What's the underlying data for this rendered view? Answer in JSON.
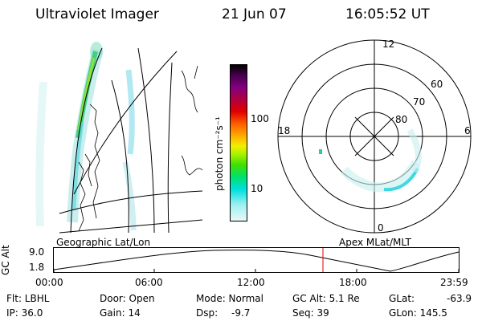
{
  "header": {
    "title": "Ultraviolet Imager",
    "date": "21 Jun 07",
    "time": "16:05:52 UT"
  },
  "colorbar": {
    "label": "photon cm⁻²s⁻¹",
    "ticks": [
      "100",
      "10"
    ],
    "colors": [
      "#000000",
      "#4b0050",
      "#800080",
      "#b00040",
      "#e00000",
      "#ff6000",
      "#ffb000",
      "#f0f000",
      "#a0f000",
      "#40e000",
      "#00e070",
      "#00e0e0",
      "#a0f0f0",
      "#e8f8f8"
    ]
  },
  "polar": {
    "clock_labels": {
      "top": "12",
      "left": "18",
      "right": "6",
      "bottom": "0"
    },
    "lat_labels": [
      "60",
      "70",
      "80"
    ]
  },
  "map": {
    "left_label": "Geographic Lat/Lon",
    "right_label": "Apex  MLat/MLT"
  },
  "orbit": {
    "ylabel": "GC Alt",
    "yticks": [
      "9.0",
      "1.8"
    ],
    "xticks": [
      "00:00",
      "06:00",
      "12:00",
      "18:00",
      "23:59"
    ],
    "marker_time": "16:05:52"
  },
  "status": {
    "flt": "Flt: LBHL",
    "ip": "IP: 36.0",
    "door": "Door: Open",
    "gain": "Gain: 14",
    "mode": "Mode: Normal",
    "dsp_label": "Dsp:",
    "dsp_value": "-9.7",
    "gcalt": "GC Alt: 5.1 Re",
    "seq": "Seq: 39",
    "glat_label": "GLat:",
    "glat_value": "-63.9",
    "glon": "GLon: 145.5"
  }
}
